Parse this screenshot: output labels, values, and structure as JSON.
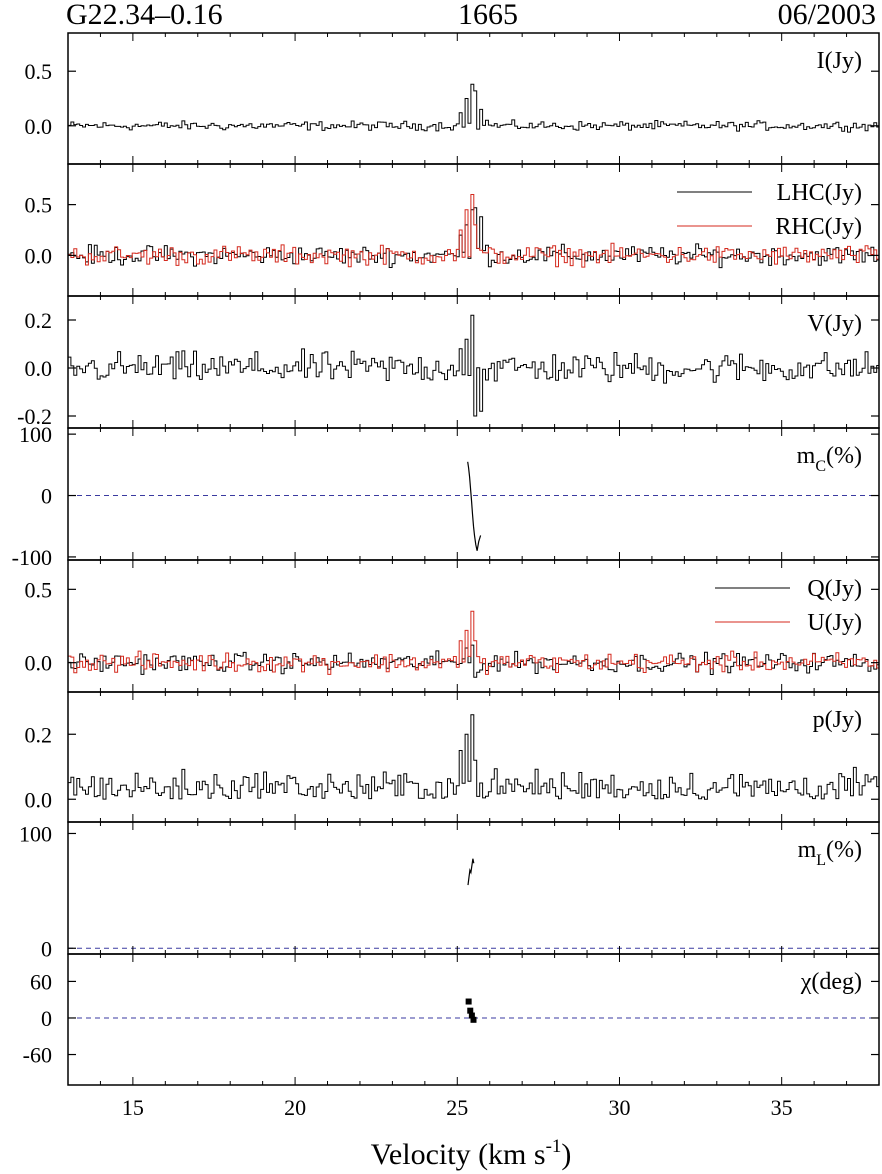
{
  "header": {
    "left": "G22.34–0.16",
    "center": "1665",
    "right": "06/2003"
  },
  "colors": {
    "series_black": "#000000",
    "series_red": "#d42a1e",
    "zero_line": "#3a3aa0"
  },
  "chart_data": {
    "type": "line",
    "xlabel": "Velocity (km s⁻¹)",
    "xlabel_parts": {
      "main": "Velocity (km s",
      "sup": "-1",
      "close": ")"
    },
    "xlim": [
      13,
      38
    ],
    "xticks": [
      15,
      20,
      25,
      30,
      35
    ],
    "panels": [
      {
        "id": "I",
        "label": "I(Jy)",
        "ylim": [
          -0.35,
          0.85
        ],
        "yticks": [
          {
            "v": 0.5,
            "t": "0.5"
          },
          {
            "v": 0.0,
            "t": "0.0"
          }
        ],
        "series": [
          {
            "name": "I(Jy)",
            "color": "black",
            "noise": 0.035,
            "baseline": 0.0,
            "feature": [
              {
                "x": 25.1,
                "y": 0.12
              },
              {
                "x": 25.25,
                "y": 0.25
              },
              {
                "x": 25.4,
                "y": 0.38
              },
              {
                "x": 25.55,
                "y": 0.32
              },
              {
                "x": 25.7,
                "y": 0.15
              },
              {
                "x": 25.85,
                "y": 0.05
              }
            ]
          }
        ]
      },
      {
        "id": "LR",
        "label": "",
        "ylim": [
          -0.4,
          0.9
        ],
        "yticks": [
          {
            "v": 0.5,
            "t": "0.5"
          },
          {
            "v": 0.0,
            "t": "0.0"
          }
        ],
        "legend": [
          "LHC(Jy)",
          "RHC(Jy)"
        ],
        "series": [
          {
            "name": "LHC(Jy)",
            "color": "black",
            "noise": 0.08,
            "baseline": 0.0,
            "feature": [
              {
                "x": 25.1,
                "y": 0.2
              },
              {
                "x": 25.25,
                "y": 0.3
              },
              {
                "x": 25.4,
                "y": 0.45
              },
              {
                "x": 25.55,
                "y": 0.47
              },
              {
                "x": 25.7,
                "y": 0.38
              },
              {
                "x": 25.85,
                "y": 0.1
              }
            ]
          },
          {
            "name": "RHC(Jy)",
            "color": "red",
            "noise": 0.08,
            "baseline": 0.0,
            "feature": [
              {
                "x": 25.1,
                "y": 0.25
              },
              {
                "x": 25.25,
                "y": 0.45
              },
              {
                "x": 25.4,
                "y": 0.6
              },
              {
                "x": 25.55,
                "y": 0.3
              },
              {
                "x": 25.7,
                "y": 0.05
              }
            ]
          }
        ]
      },
      {
        "id": "V",
        "label": "V(Jy)",
        "ylim": [
          -0.25,
          0.3
        ],
        "yticks": [
          {
            "v": 0.2,
            "t": "0.2"
          },
          {
            "v": 0.0,
            "t": "0.0"
          },
          {
            "v": -0.2,
            "t": "-0.2"
          }
        ],
        "series": [
          {
            "name": "V(Jy)",
            "color": "black",
            "noise": 0.055,
            "baseline": 0.0,
            "feature": [
              {
                "x": 25.1,
                "y": 0.08
              },
              {
                "x": 25.25,
                "y": 0.12
              },
              {
                "x": 25.4,
                "y": 0.22
              },
              {
                "x": 25.55,
                "y": -0.2
              },
              {
                "x": 25.7,
                "y": -0.18
              },
              {
                "x": 25.85,
                "y": -0.05
              }
            ]
          }
        ]
      },
      {
        "id": "mc",
        "label": "m",
        "label_sub": "C",
        "label_tail": "(%)",
        "ylim": [
          -105,
          110
        ],
        "yticks": [
          {
            "v": 100,
            "t": "100"
          },
          {
            "v": 0,
            "t": "0"
          },
          {
            "v": -100,
            "t": "-100"
          }
        ],
        "zeroline": true,
        "curves": [
          {
            "x": [
              25.32,
              25.35,
              25.38,
              25.41,
              25.44,
              25.47,
              25.5,
              25.53,
              25.57,
              25.61,
              25.66,
              25.72
            ],
            "y": [
              55,
              45,
              30,
              10,
              -10,
              -30,
              -50,
              -65,
              -80,
              -90,
              -75,
              -65
            ]
          }
        ]
      },
      {
        "id": "QU",
        "label": "",
        "ylim": [
          -0.2,
          0.7
        ],
        "yticks": [
          {
            "v": 0.5,
            "t": "0.5"
          },
          {
            "v": 0.0,
            "t": "0.0"
          }
        ],
        "legend": [
          "Q(Jy)",
          "U(Jy)"
        ],
        "series": [
          {
            "name": "Q(Jy)",
            "color": "black",
            "noise": 0.055,
            "baseline": 0.0,
            "feature": [
              {
                "x": 25.25,
                "y": 0.1
              },
              {
                "x": 25.4,
                "y": 0.12
              },
              {
                "x": 25.55,
                "y": -0.1
              },
              {
                "x": 25.7,
                "y": -0.05
              }
            ]
          },
          {
            "name": "U(Jy)",
            "color": "red",
            "noise": 0.055,
            "baseline": 0.0,
            "feature": [
              {
                "x": 25.1,
                "y": 0.15
              },
              {
                "x": 25.25,
                "y": 0.22
              },
              {
                "x": 25.4,
                "y": 0.35
              },
              {
                "x": 25.55,
                "y": 0.15
              },
              {
                "x": 25.7,
                "y": 0.0
              }
            ]
          }
        ]
      },
      {
        "id": "p",
        "label": "p(Jy)",
        "ylim": [
          -0.07,
          0.33
        ],
        "yticks": [
          {
            "v": 0.2,
            "t": "0.2"
          },
          {
            "v": 0.0,
            "t": "0.0"
          }
        ],
        "series": [
          {
            "name": "p(Jy)",
            "color": "black",
            "noise": 0.045,
            "baseline": 0.035,
            "positive": true,
            "feature": [
              {
                "x": 25.1,
                "y": 0.15
              },
              {
                "x": 25.25,
                "y": 0.2
              },
              {
                "x": 25.4,
                "y": 0.26
              },
              {
                "x": 25.55,
                "y": 0.12
              },
              {
                "x": 25.7,
                "y": 0.05
              }
            ]
          }
        ]
      },
      {
        "id": "ml",
        "label": "m",
        "label_sub": "L",
        "label_tail": "(%)",
        "ylim": [
          -5,
          110
        ],
        "yticks": [
          {
            "v": 100,
            "t": "100"
          },
          {
            "v": 0,
            "t": "0"
          }
        ],
        "zeroline": true,
        "curves": [
          {
            "x": [
              25.33,
              25.36,
              25.39,
              25.42,
              25.45,
              25.48,
              25.51
            ],
            "y": [
              55,
              62,
              68,
              66,
              72,
              78,
              74
            ]
          }
        ]
      },
      {
        "id": "chi",
        "label": "χ(deg)",
        "ylim": [
          -110,
          105
        ],
        "yticks": [
          {
            "v": 60,
            "t": "60"
          },
          {
            "v": 0,
            "t": "0"
          },
          {
            "v": -60,
            "t": "-60"
          }
        ],
        "zeroline": true,
        "points": [
          {
            "x": 25.35,
            "y": 27
          },
          {
            "x": 25.4,
            "y": 12
          },
          {
            "x": 25.45,
            "y": 4
          },
          {
            "x": 25.5,
            "y": -3
          }
        ]
      }
    ]
  }
}
